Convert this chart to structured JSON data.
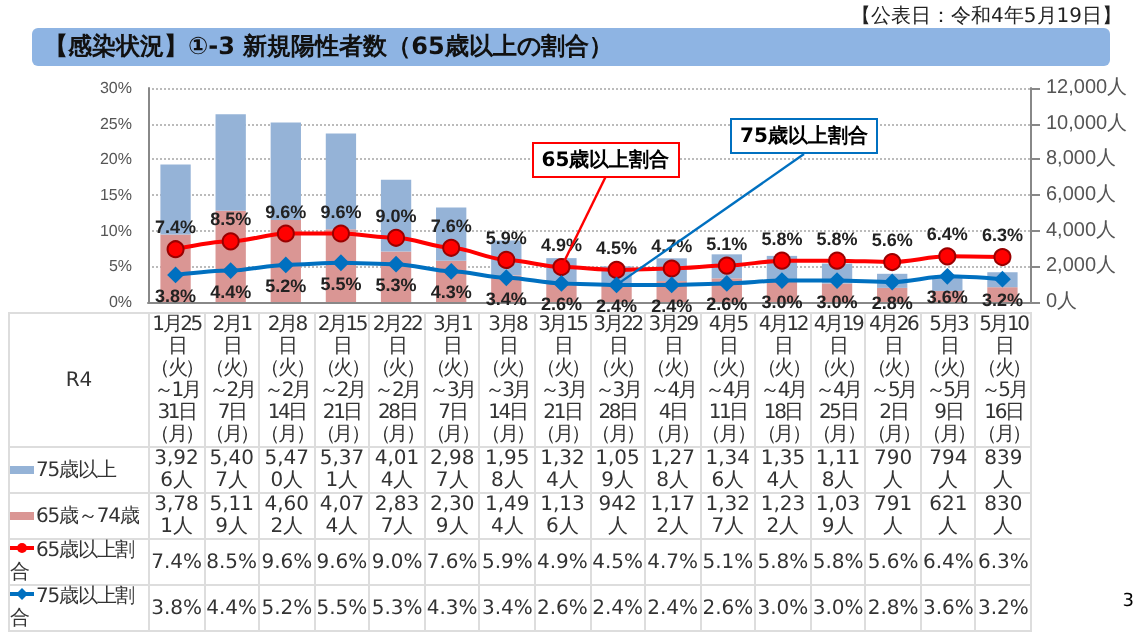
{
  "chart_data": {
    "type": "bar",
    "title": "【感染状況】①-3 新規陽性者数（65歳以上の割合）",
    "subtitle": "【公表日：令和4年5月19日】",
    "categories": [
      "1月25日（火）～1月31日（月）",
      "2月1日（火）～2月7日（月）",
      "2月8日（火）～2月14日（月）",
      "2月15日（火）～2月21日（月）",
      "2月22日（火）～2月28日（月）",
      "3月1日（火）～3月7日（月）",
      "3月8日（火）～3月14日（月）",
      "3月15日（火）～3月21日（月）",
      "3月22日（火）～3月28日（月）",
      "3月29日（火）～4月4日（月）",
      "4月5日（火）～4月11日（月）",
      "4月12日（火）～4月18日（月）",
      "4月19日（火）～4月25日（月）",
      "4月26日（火）～5月2日（月）",
      "5月3日（火）～5月9日（月）",
      "5月10日（火）～5月16日（月）"
    ],
    "series": [
      {
        "name": "65歳～74歳",
        "color": "#da9694",
        "axis": "y2",
        "values": [
          3781,
          5119,
          4602,
          4074,
          2837,
          2309,
          1494,
          1136,
          942,
          1172,
          1327,
          1232,
          1039,
          791,
          621,
          830
        ],
        "value_labels": [
          "3,781人",
          "5,119人",
          "4,602人",
          "4,074人",
          "2,837人",
          "2,309人",
          "1,494人",
          "1,136人",
          "942人",
          "1,172人",
          "1,327人",
          "1,232人",
          "1,039人",
          "791人",
          "621人",
          "830人"
        ]
      },
      {
        "name": "75歳以上",
        "color": "#95b3d7",
        "axis": "y2",
        "values": [
          3926,
          5407,
          5470,
          5371,
          4014,
          2987,
          1958,
          1324,
          1059,
          1278,
          1346,
          1354,
          1118,
          790,
          794,
          839
        ],
        "value_labels": [
          "3,926人",
          "5,407人",
          "5,470人",
          "5,371人",
          "4,014人",
          "2,987人",
          "1,958人",
          "1,324人",
          "1,059人",
          "1,278人",
          "1,346人",
          "1,354人",
          "1,118人",
          "790人",
          "794人",
          "839人"
        ]
      },
      {
        "name": "65歳以上割合",
        "type": "line",
        "color": "#ff0000",
        "marker": "circle",
        "values": [
          7.4,
          8.5,
          9.6,
          9.6,
          9.0,
          7.6,
          5.9,
          4.9,
          4.5,
          4.7,
          5.1,
          5.8,
          5.8,
          5.6,
          6.4,
          6.3
        ],
        "value_labels": [
          "7.4%",
          "8.5%",
          "9.6%",
          "9.6%",
          "9.0%",
          "7.6%",
          "5.9%",
          "4.9%",
          "4.5%",
          "4.7%",
          "5.1%",
          "5.8%",
          "5.8%",
          "5.6%",
          "6.4%",
          "6.3%"
        ]
      },
      {
        "name": "75歳以上割合",
        "type": "line",
        "color": "#0070c0",
        "marker": "diamond",
        "values": [
          3.8,
          4.4,
          5.2,
          5.5,
          5.3,
          4.3,
          3.4,
          2.6,
          2.4,
          2.4,
          2.6,
          3.0,
          3.0,
          2.8,
          3.6,
          3.2
        ],
        "value_labels": [
          "3.8%",
          "4.4%",
          "5.2%",
          "5.5%",
          "5.3%",
          "4.3%",
          "3.4%",
          "2.6%",
          "2.4%",
          "2.4%",
          "2.6%",
          "3.0%",
          "3.0%",
          "2.8%",
          "3.6%",
          "3.2%"
        ]
      }
    ],
    "stacked": true,
    "ylim": [
      0,
      30
    ],
    "yticks": [
      {
        "value": 0,
        "label": "0%"
      },
      {
        "value": 5,
        "label": "5%"
      },
      {
        "value": 10,
        "label": "10%"
      },
      {
        "value": 15,
        "label": "15%"
      },
      {
        "value": 20,
        "label": "20%"
      },
      {
        "value": 25,
        "label": "25%"
      },
      {
        "value": 30,
        "label": "30%"
      }
    ],
    "y2lim": [
      0,
      12000
    ],
    "y2ticks": [
      {
        "value": 0,
        "label": "0人"
      },
      {
        "value": 2000,
        "label": "2,000人"
      },
      {
        "value": 4000,
        "label": "4,000人"
      },
      {
        "value": 6000,
        "label": "6,000人"
      },
      {
        "value": 8000,
        "label": "8,000人"
      },
      {
        "value": 10000,
        "label": "10,000人"
      },
      {
        "value": 12000,
        "label": "12,000人"
      }
    ],
    "grid": "y",
    "legend": "bottom",
    "annotations": [
      {
        "text": "65歳以上割合",
        "x": "3月15日（火）～3月21日（月）",
        "y": 4.9
      },
      {
        "text": "75歳以上割合",
        "x": "3月22日（火）～3月28日（月）",
        "y": 2.4
      },
      "R4",
      "3"
    ]
  }
}
